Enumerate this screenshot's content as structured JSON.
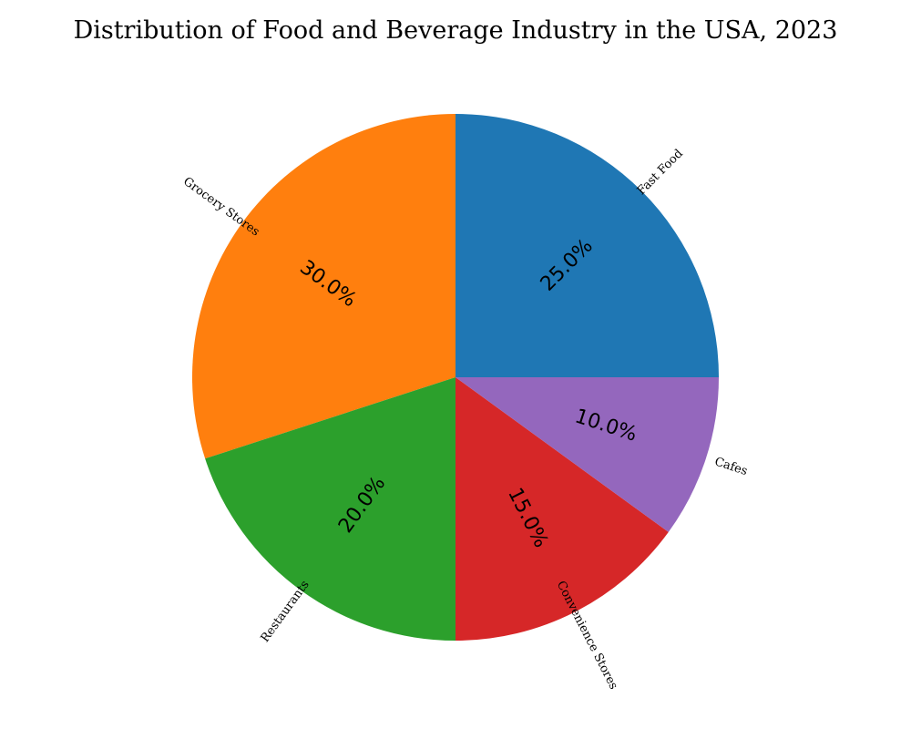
{
  "chart_data": {
    "type": "pie",
    "title": "Distribution of Food and Beverage Industry in the USA, 2023",
    "start_angle_deg": 0,
    "direction": "counterclockwise",
    "label_rotation": "rotated",
    "slices": [
      {
        "label": "Fast Food",
        "value": 25.0,
        "pct_text": "25.0%",
        "color": "#1f77b4"
      },
      {
        "label": "Grocery Stores",
        "value": 30.0,
        "pct_text": "30.0%",
        "color": "#ff7f0e"
      },
      {
        "label": "Restaurants",
        "value": 20.0,
        "pct_text": "20.0%",
        "color": "#2ca02c"
      },
      {
        "label": "Convenience Stores",
        "value": 15.0,
        "pct_text": "15.0%",
        "color": "#d62728"
      },
      {
        "label": "Cafes",
        "value": 10.0,
        "pct_text": "10.0%",
        "color": "#9467bd"
      }
    ]
  }
}
